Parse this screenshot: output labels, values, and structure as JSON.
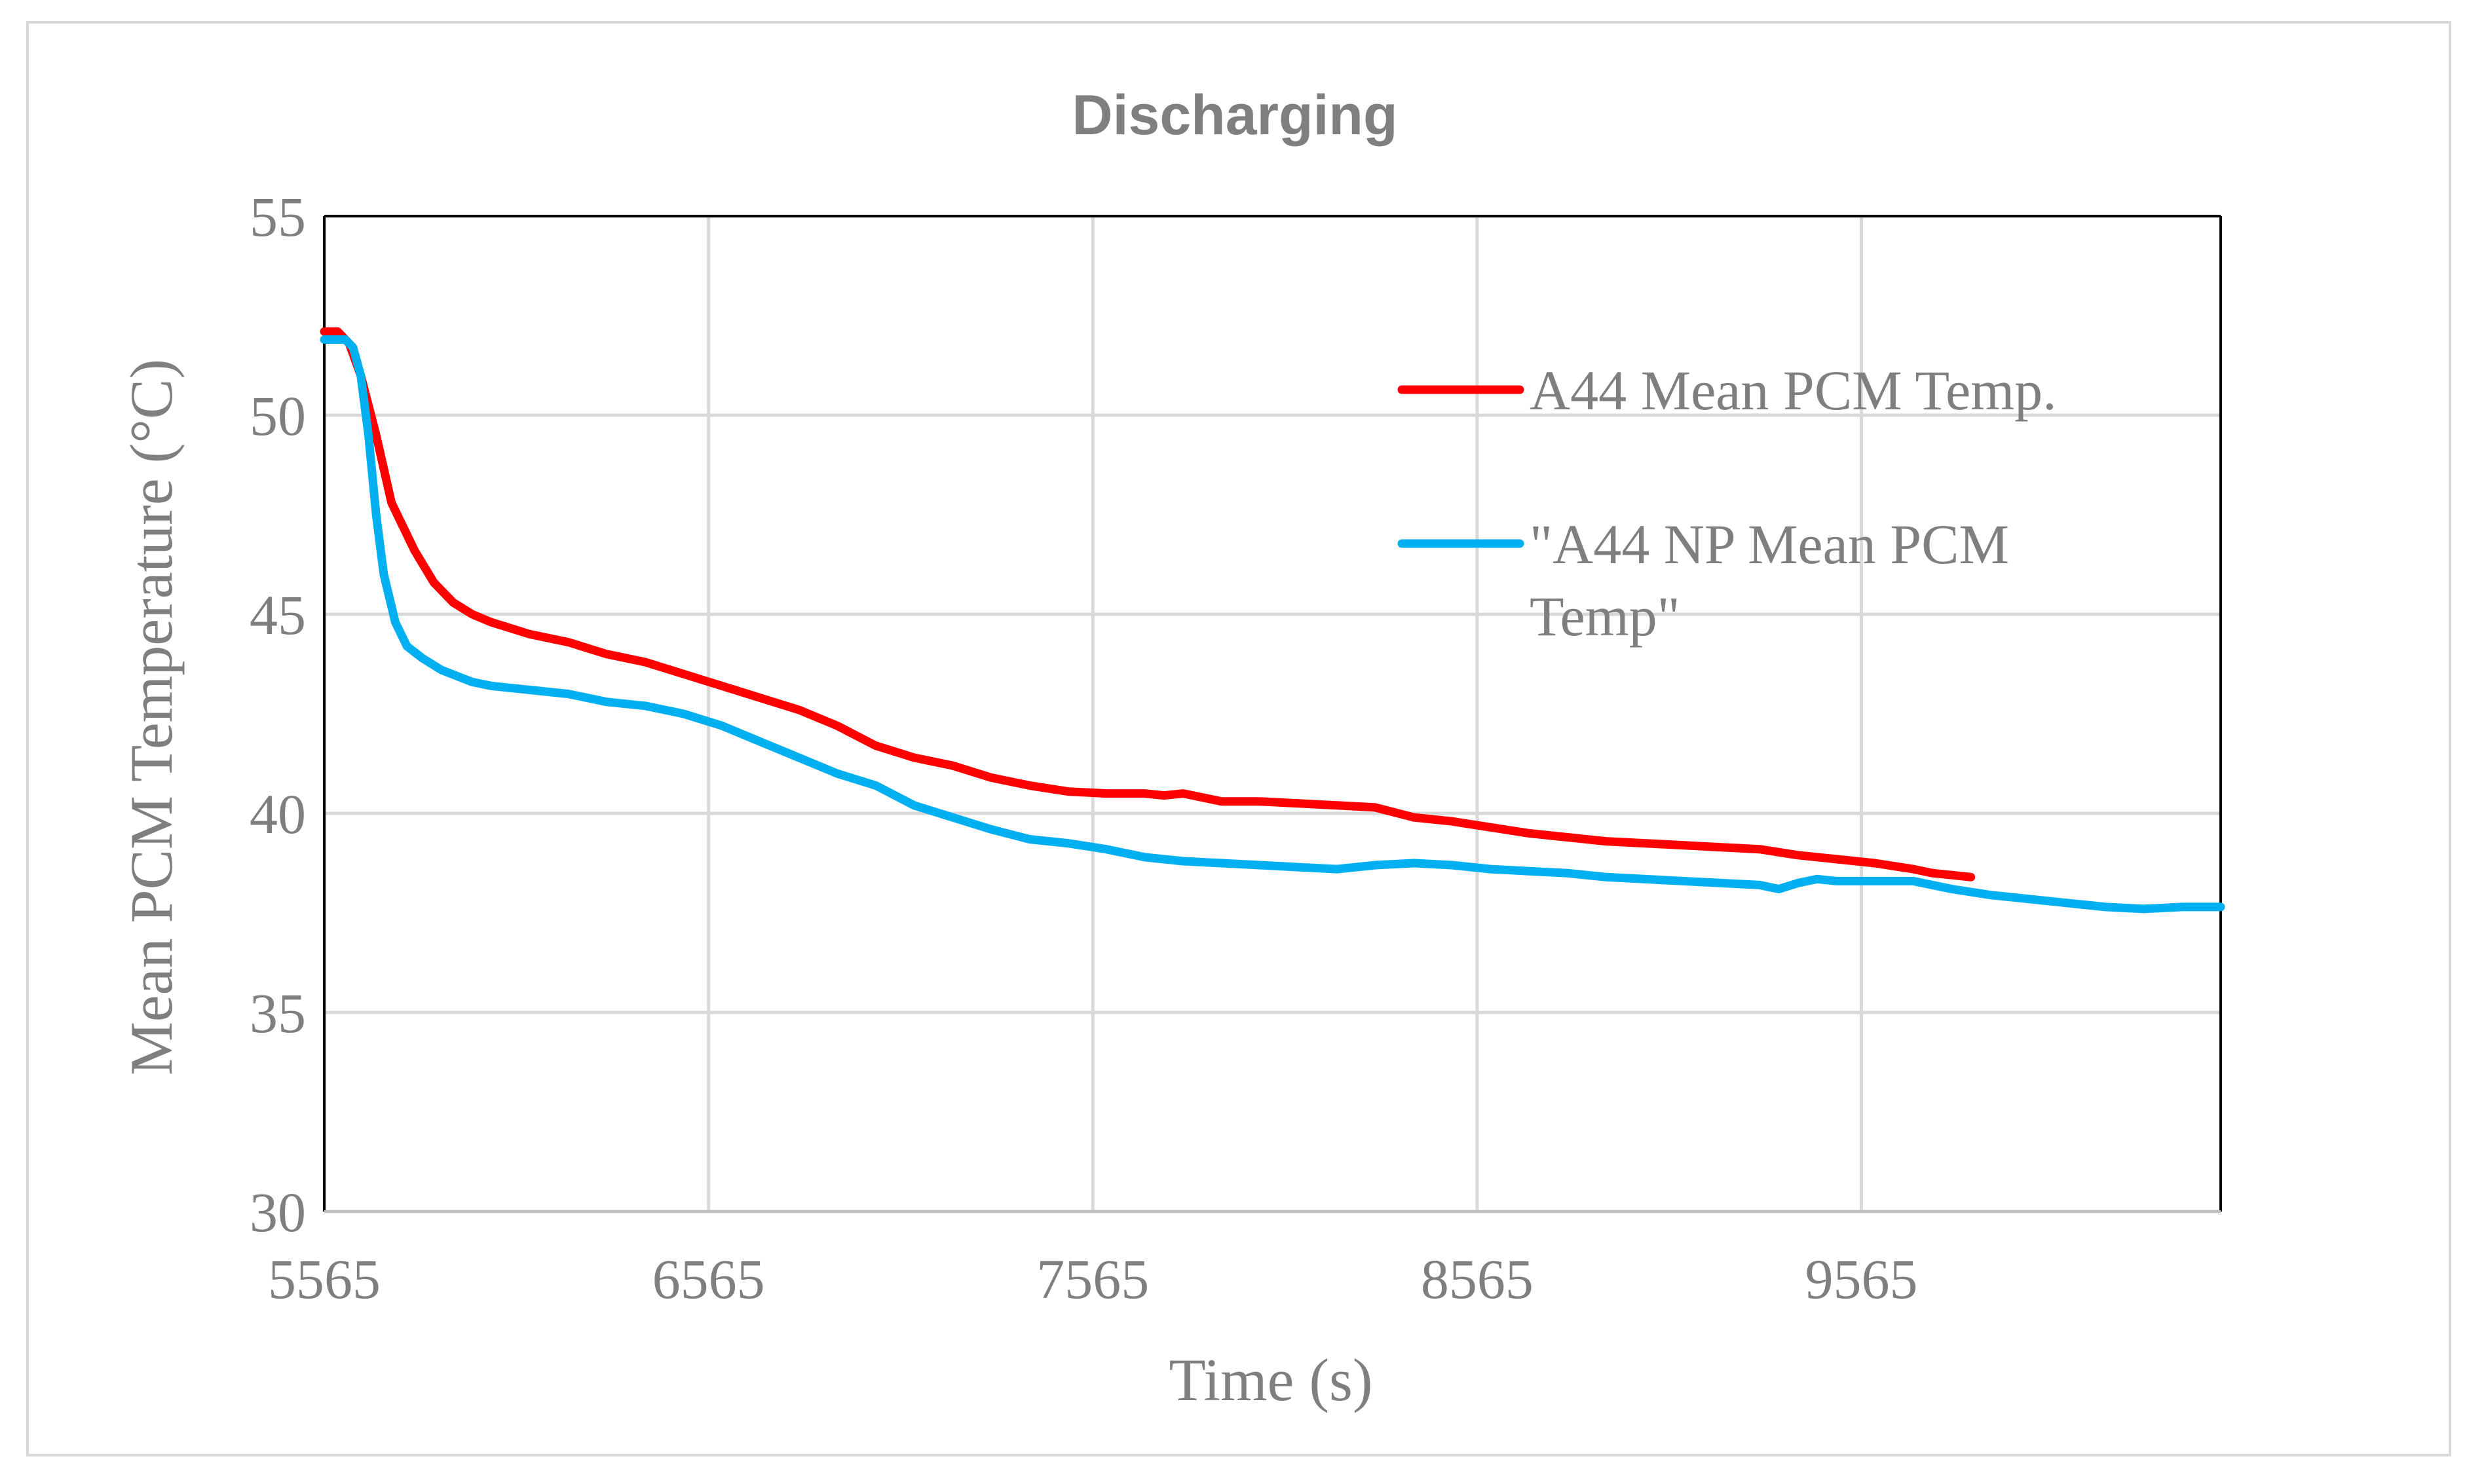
{
  "chart_data": {
    "type": "line",
    "title": "Discharging",
    "xlabel": "Time (s)",
    "ylabel": "Mean PCM Temperature (°C)",
    "xlim": [
      5565,
      10500
    ],
    "ylim": [
      30,
      55
    ],
    "x_ticks": [
      5565,
      6565,
      7565,
      8565,
      9565
    ],
    "y_ticks": [
      30,
      35,
      40,
      45,
      50,
      55
    ],
    "x_tick_labels": [
      "5565",
      "6565",
      "7565",
      "8565",
      "9565"
    ],
    "y_tick_labels": [
      "30",
      "35",
      "40",
      "45",
      "50",
      "55"
    ],
    "grid": true,
    "legend_position": "right",
    "series": [
      {
        "name": "A44 Mean PCM Temp.",
        "legend_lines": [
          "A44 Mean PCM Temp."
        ],
        "color": "#ff0000",
        "points": [
          [
            5565,
            52.1
          ],
          [
            5600,
            52.1
          ],
          [
            5630,
            51.8
          ],
          [
            5660,
            51.0
          ],
          [
            5700,
            49.5
          ],
          [
            5740,
            47.8
          ],
          [
            5800,
            46.6
          ],
          [
            5850,
            45.8
          ],
          [
            5900,
            45.3
          ],
          [
            5950,
            45.0
          ],
          [
            6000,
            44.8
          ],
          [
            6100,
            44.5
          ],
          [
            6200,
            44.3
          ],
          [
            6300,
            44.0
          ],
          [
            6400,
            43.8
          ],
          [
            6500,
            43.5
          ],
          [
            6600,
            43.2
          ],
          [
            6700,
            42.9
          ],
          [
            6800,
            42.6
          ],
          [
            6900,
            42.2
          ],
          [
            7000,
            41.7
          ],
          [
            7100,
            41.4
          ],
          [
            7200,
            41.2
          ],
          [
            7300,
            40.9
          ],
          [
            7400,
            40.7
          ],
          [
            7500,
            40.55
          ],
          [
            7600,
            40.5
          ],
          [
            7700,
            40.5
          ],
          [
            7750,
            40.45
          ],
          [
            7800,
            40.5
          ],
          [
            7900,
            40.3
          ],
          [
            8000,
            40.3
          ],
          [
            8100,
            40.25
          ],
          [
            8200,
            40.2
          ],
          [
            8300,
            40.15
          ],
          [
            8400,
            39.9
          ],
          [
            8500,
            39.8
          ],
          [
            8600,
            39.65
          ],
          [
            8700,
            39.5
          ],
          [
            8800,
            39.4
          ],
          [
            8900,
            39.3
          ],
          [
            9000,
            39.25
          ],
          [
            9100,
            39.2
          ],
          [
            9200,
            39.15
          ],
          [
            9300,
            39.1
          ],
          [
            9400,
            38.95
          ],
          [
            9500,
            38.85
          ],
          [
            9600,
            38.75
          ],
          [
            9700,
            38.6
          ],
          [
            9750,
            38.5
          ],
          [
            9800,
            38.45
          ],
          [
            9850,
            38.4
          ]
        ]
      },
      {
        "name": "\"A44 NP Mean PCM Temp\"",
        "legend_lines": [
          "\"A44 NP Mean PCM",
          "Temp\""
        ],
        "color": "#00b0f0",
        "points": [
          [
            5565,
            51.9
          ],
          [
            5620,
            51.9
          ],
          [
            5640,
            51.7
          ],
          [
            5660,
            51.0
          ],
          [
            5680,
            49.5
          ],
          [
            5700,
            47.5
          ],
          [
            5720,
            46.0
          ],
          [
            5750,
            44.8
          ],
          [
            5780,
            44.2
          ],
          [
            5820,
            43.9
          ],
          [
            5870,
            43.6
          ],
          [
            5950,
            43.3
          ],
          [
            6000,
            43.2
          ],
          [
            6100,
            43.1
          ],
          [
            6200,
            43.0
          ],
          [
            6300,
            42.8
          ],
          [
            6400,
            42.7
          ],
          [
            6500,
            42.5
          ],
          [
            6600,
            42.2
          ],
          [
            6700,
            41.8
          ],
          [
            6800,
            41.4
          ],
          [
            6900,
            41.0
          ],
          [
            7000,
            40.7
          ],
          [
            7100,
            40.2
          ],
          [
            7200,
            39.9
          ],
          [
            7300,
            39.6
          ],
          [
            7400,
            39.35
          ],
          [
            7500,
            39.25
          ],
          [
            7600,
            39.1
          ],
          [
            7700,
            38.9
          ],
          [
            7800,
            38.8
          ],
          [
            7900,
            38.75
          ],
          [
            8000,
            38.7
          ],
          [
            8100,
            38.65
          ],
          [
            8200,
            38.6
          ],
          [
            8300,
            38.7
          ],
          [
            8400,
            38.75
          ],
          [
            8500,
            38.7
          ],
          [
            8600,
            38.6
          ],
          [
            8700,
            38.55
          ],
          [
            8800,
            38.5
          ],
          [
            8900,
            38.4
          ],
          [
            9000,
            38.35
          ],
          [
            9100,
            38.3
          ],
          [
            9200,
            38.25
          ],
          [
            9300,
            38.2
          ],
          [
            9350,
            38.1
          ],
          [
            9400,
            38.25
          ],
          [
            9450,
            38.35
          ],
          [
            9500,
            38.3
          ],
          [
            9600,
            38.3
          ],
          [
            9700,
            38.3
          ],
          [
            9800,
            38.1
          ],
          [
            9900,
            37.95
          ],
          [
            10000,
            37.85
          ],
          [
            10100,
            37.75
          ],
          [
            10200,
            37.65
          ],
          [
            10300,
            37.6
          ],
          [
            10400,
            37.65
          ],
          [
            10500,
            37.65
          ]
        ]
      }
    ]
  }
}
